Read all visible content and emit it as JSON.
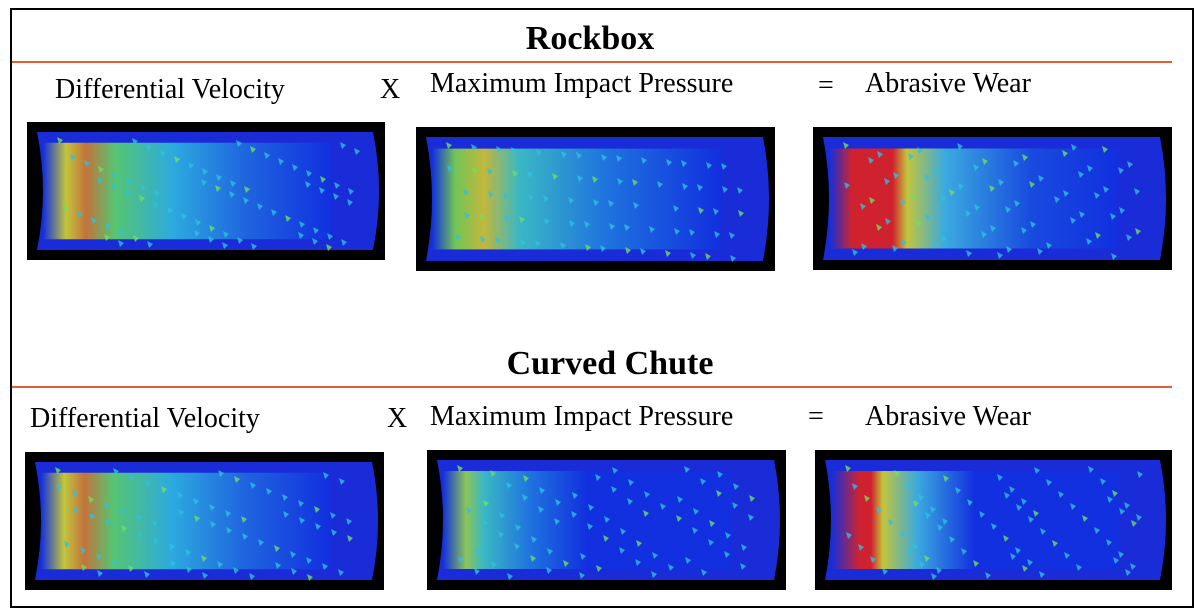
{
  "sections": [
    {
      "title": "Rockbox",
      "labels": [
        "Differential Velocity",
        "Maximum Impact Pressure",
        "Abrasive Wear"
      ],
      "operators": [
        "X",
        "="
      ]
    },
    {
      "title": "Curved Chute",
      "labels": [
        "Differential Velocity",
        "Maximum Impact Pressure",
        "Abrasive Wear"
      ],
      "operators": [
        "X",
        "="
      ]
    }
  ]
}
